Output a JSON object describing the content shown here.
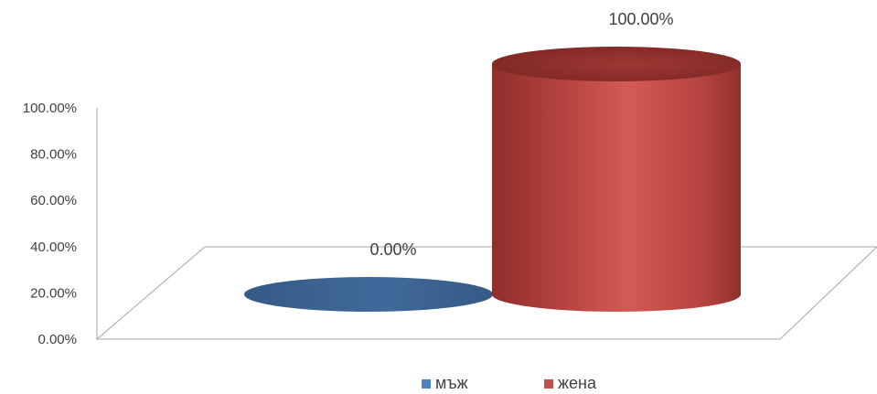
{
  "chart_data": {
    "type": "bar",
    "style": "3d-cylinder",
    "categories": [
      ""
    ],
    "series": [
      {
        "name": "мъж",
        "values": [
          0.0
        ],
        "label": "0.00%",
        "color": "#4f81bd"
      },
      {
        "name": "жена",
        "values": [
          100.0
        ],
        "label": "100.00%",
        "color": "#c0504d"
      }
    ],
    "y_ticks": [
      "0.00%",
      "20.00%",
      "40.00%",
      "60.00%",
      "80.00%",
      "100.00%"
    ],
    "ylim": [
      0,
      100
    ],
    "legend_position": "bottom",
    "grid": false
  }
}
